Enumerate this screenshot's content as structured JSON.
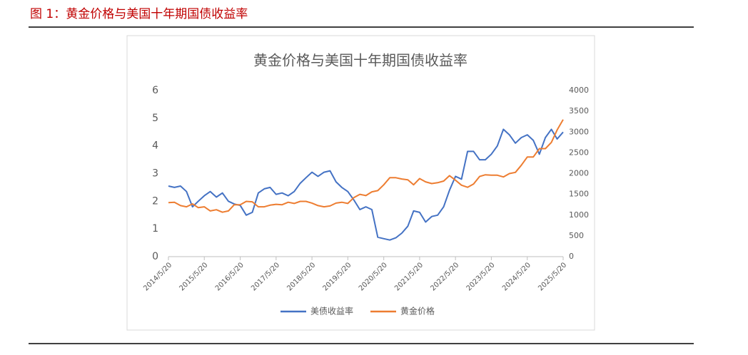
{
  "figure_caption": "图 1：黄金价格与美国十年期国债收益率",
  "chart_data": {
    "type": "line",
    "title": "黄金价格与美国十年期国债收益率",
    "x": [
      "2014/5/20",
      "2014/7/20",
      "2014/9/20",
      "2014/11/20",
      "2015/1/20",
      "2015/3/20",
      "2015/5/20",
      "2015/7/20",
      "2015/9/20",
      "2015/11/20",
      "2016/1/20",
      "2016/3/20",
      "2016/5/20",
      "2016/7/20",
      "2016/9/20",
      "2016/11/20",
      "2017/1/20",
      "2017/3/20",
      "2017/5/20",
      "2017/7/20",
      "2017/9/20",
      "2017/11/20",
      "2018/1/20",
      "2018/3/20",
      "2018/5/20",
      "2018/7/20",
      "2018/9/20",
      "2018/11/20",
      "2019/1/20",
      "2019/3/20",
      "2019/5/20",
      "2019/7/20",
      "2019/9/20",
      "2019/11/20",
      "2020/1/20",
      "2020/3/20",
      "2020/5/20",
      "2020/7/20",
      "2020/9/20",
      "2020/11/20",
      "2021/1/20",
      "2021/3/20",
      "2021/5/20",
      "2021/7/20",
      "2021/9/20",
      "2021/11/20",
      "2022/1/20",
      "2022/3/20",
      "2022/5/20",
      "2022/7/20",
      "2022/9/20",
      "2022/11/20",
      "2023/1/20",
      "2023/3/20",
      "2023/5/20",
      "2023/7/20",
      "2023/9/20",
      "2023/11/20",
      "2024/1/20",
      "2024/3/20",
      "2024/5/20",
      "2024/7/20",
      "2024/9/20",
      "2024/11/20",
      "2025/1/20",
      "2025/3/20",
      "2025/5/20"
    ],
    "xlim": [
      "2014/5/20",
      "2025/5/20"
    ],
    "xticks": [
      "2014/5/20",
      "2015/5/20",
      "2016/5/20",
      "2017/5/20",
      "2018/5/20",
      "2019/5/20",
      "2020/5/20",
      "2021/5/20",
      "2022/5/20",
      "2023/5/20",
      "2024/5/20",
      "2025/5/20"
    ],
    "ylim": [
      0,
      6
    ],
    "yticks": [
      0,
      1,
      2,
      3,
      4,
      5,
      6
    ],
    "y2lim": [
      0,
      4000
    ],
    "y2ticks": [
      0,
      500,
      1000,
      1500,
      2000,
      2500,
      3000,
      3500,
      4000
    ],
    "grid": false,
    "legend": "bottom",
    "series": [
      {
        "name": "美债收益率",
        "color": "#4472c4",
        "axis": "y",
        "values": [
          2.55,
          2.5,
          2.55,
          2.35,
          1.8,
          2.0,
          2.2,
          2.35,
          2.15,
          2.3,
          2.0,
          1.9,
          1.85,
          1.5,
          1.6,
          2.3,
          2.45,
          2.5,
          2.25,
          2.3,
          2.2,
          2.35,
          2.65,
          2.85,
          3.05,
          2.9,
          3.05,
          3.1,
          2.7,
          2.5,
          2.35,
          2.05,
          1.7,
          1.8,
          1.7,
          0.7,
          0.65,
          0.6,
          0.68,
          0.85,
          1.1,
          1.65,
          1.6,
          1.25,
          1.45,
          1.5,
          1.8,
          2.4,
          2.9,
          2.8,
          3.8,
          3.8,
          3.5,
          3.5,
          3.7,
          4.0,
          4.6,
          4.4,
          4.1,
          4.3,
          4.4,
          4.2,
          3.7,
          4.3,
          4.6,
          4.25,
          4.5
        ]
      },
      {
        "name": "黄金价格",
        "color": "#ed7d31",
        "axis": "y2",
        "values": [
          1300,
          1310,
          1230,
          1200,
          1270,
          1180,
          1200,
          1100,
          1130,
          1070,
          1100,
          1250,
          1250,
          1330,
          1320,
          1200,
          1200,
          1240,
          1260,
          1250,
          1310,
          1280,
          1330,
          1330,
          1290,
          1230,
          1200,
          1220,
          1290,
          1310,
          1280,
          1420,
          1500,
          1470,
          1560,
          1590,
          1730,
          1900,
          1900,
          1870,
          1850,
          1730,
          1880,
          1800,
          1760,
          1780,
          1820,
          1950,
          1840,
          1720,
          1670,
          1750,
          1930,
          1970,
          1960,
          1960,
          1920,
          2000,
          2030,
          2200,
          2400,
          2400,
          2600,
          2600,
          2750,
          3050,
          3300
        ]
      }
    ]
  }
}
